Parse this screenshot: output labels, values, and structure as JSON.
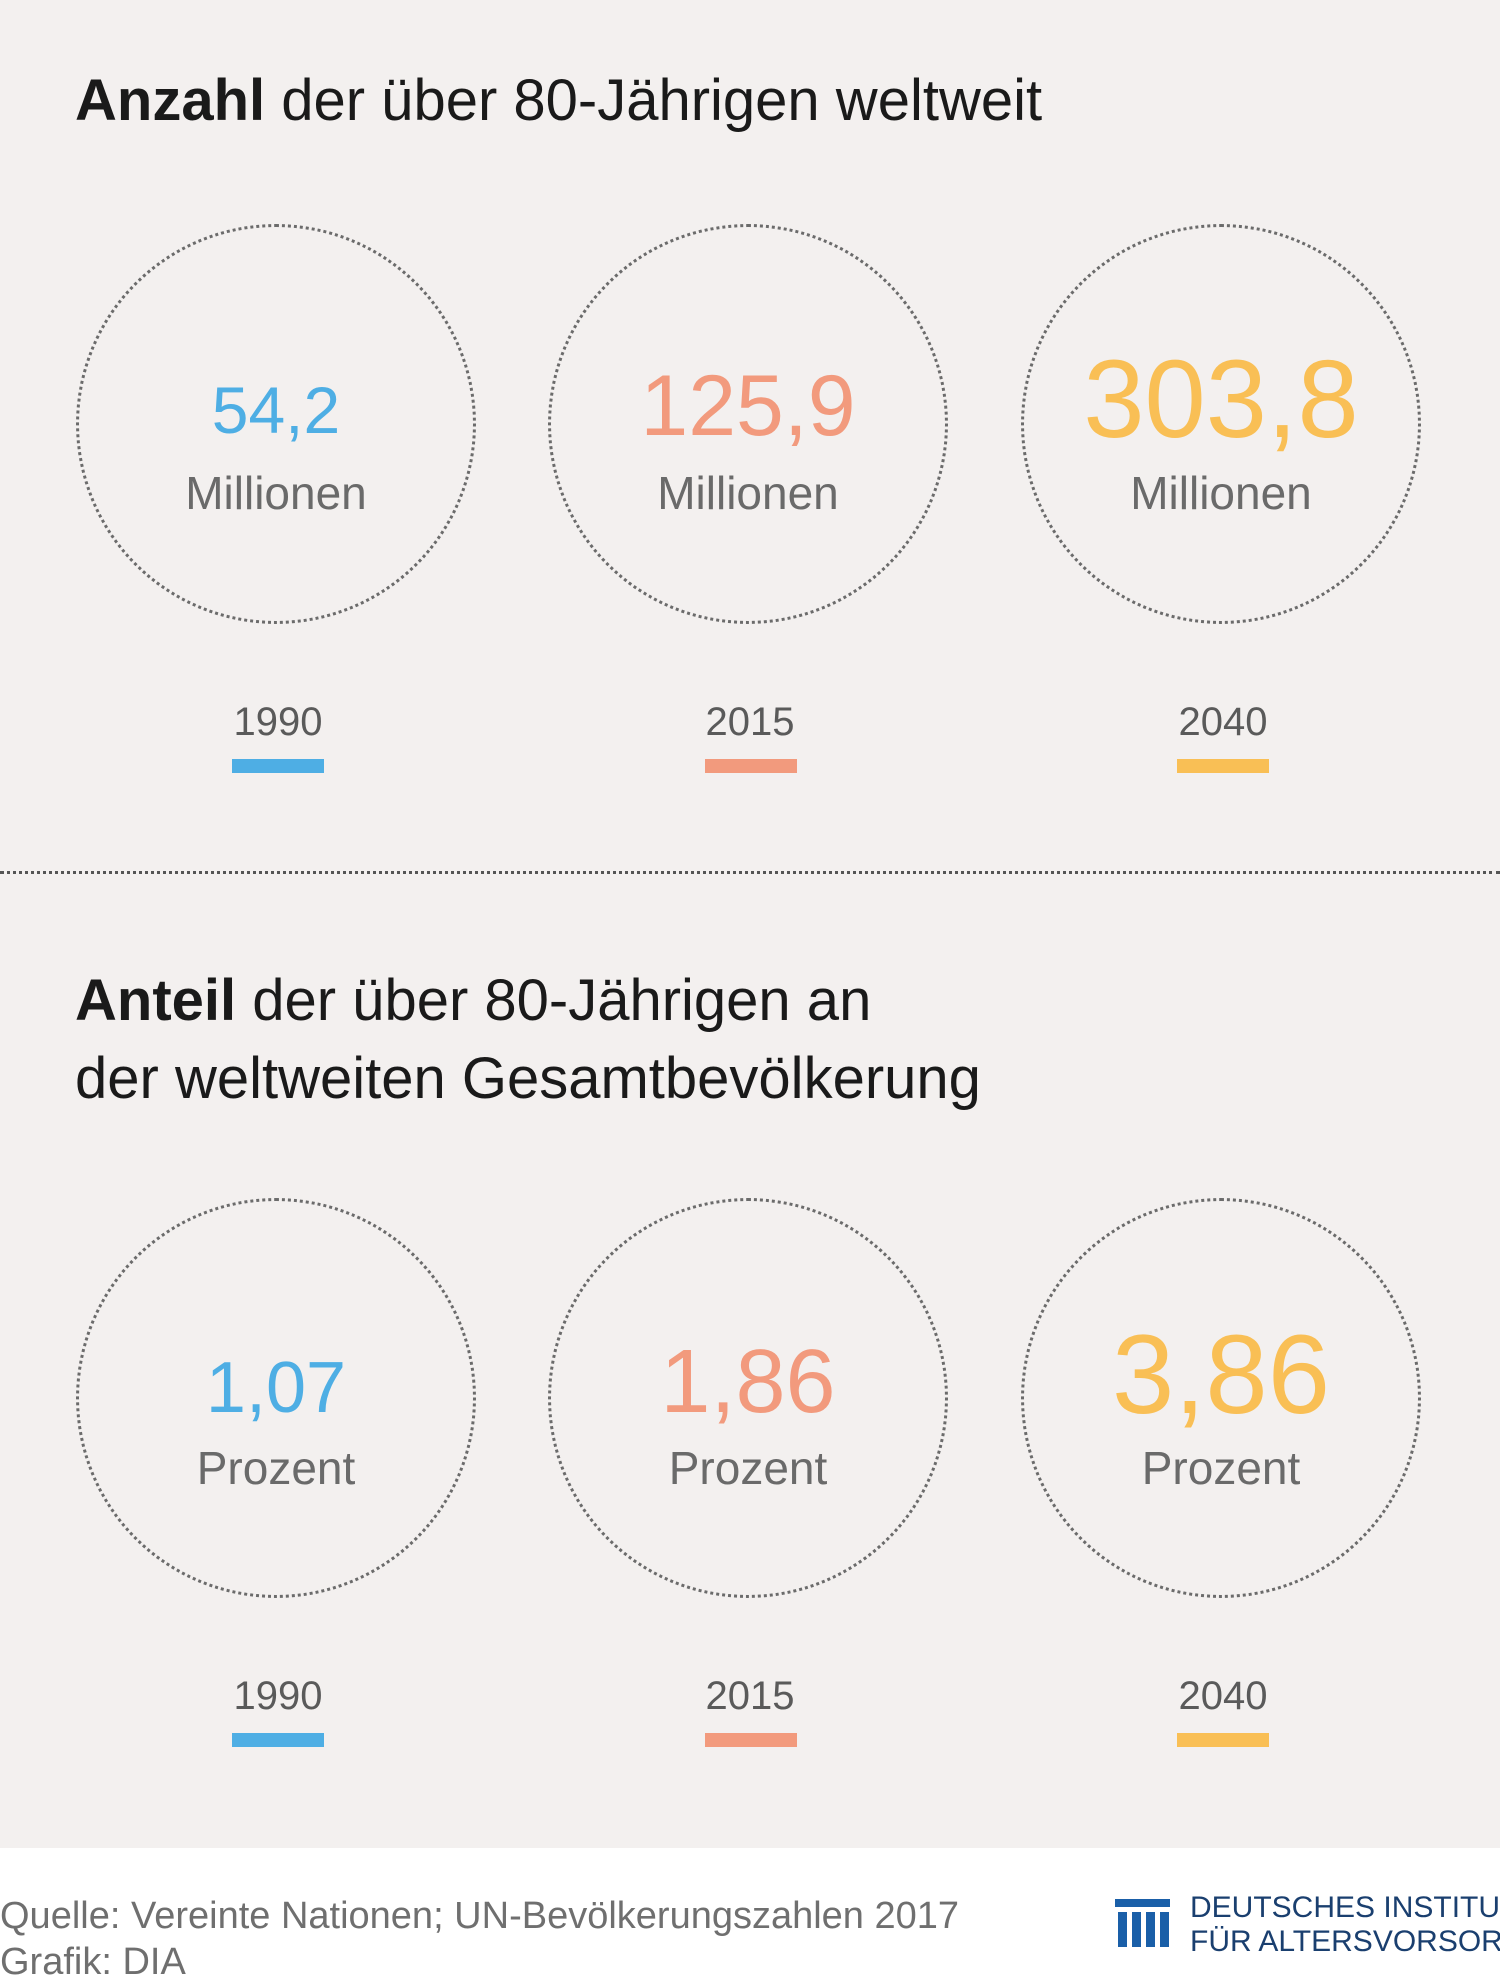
{
  "section1": {
    "title_bold": "Anzahl",
    "title_rest": " der über 80-Jährigen weltweit",
    "items": [
      {
        "value": "54,2",
        "unit": "Millionen",
        "year": "1990"
      },
      {
        "value": "125,9",
        "unit": "Millionen",
        "year": "2015"
      },
      {
        "value": "303,8",
        "unit": "Millionen",
        "year": "2040"
      }
    ]
  },
  "section2": {
    "title_bold": "Anteil",
    "title_rest_line1": " der über 80-Jährigen an",
    "title_line2": "der weltweiten Gesamtbevölkerung",
    "items": [
      {
        "value": "1,07",
        "unit": "Prozent",
        "year": "1990"
      },
      {
        "value": "1,86",
        "unit": "Prozent",
        "year": "2015"
      },
      {
        "value": "3,86",
        "unit": "Prozent",
        "year": "2040"
      }
    ]
  },
  "colors": {
    "year_1990": "#4eaee4",
    "year_2015": "#f29a7d",
    "year_2040": "#f9bf55",
    "background": "#f3f0ef"
  },
  "footer": {
    "source": "Quelle: Vereinte Nationen; UN-Bevölkerungszahlen 2017",
    "credit": "Grafik: DIA",
    "logo_line1": "DEUTSCHES INSTITUT",
    "logo_line2": "FÜR ALTERSVORSORGE",
    "logo_icon": "dia-logo-icon"
  }
}
